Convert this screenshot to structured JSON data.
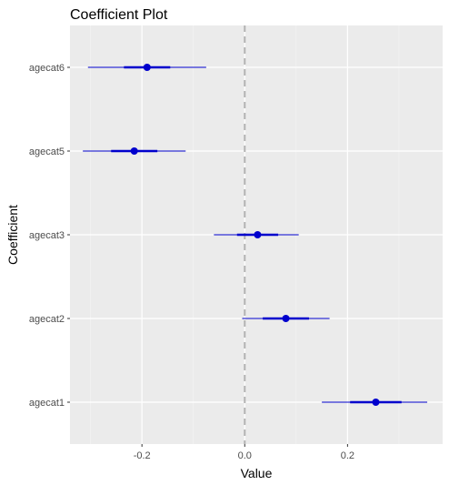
{
  "chart_data": {
    "type": "coefficient-plot",
    "title": "Coefficient Plot",
    "xlabel": "Value",
    "ylabel": "Coefficient",
    "xlim": [
      -0.34,
      0.385
    ],
    "x_ticks": [
      -0.2,
      0.0,
      0.2
    ],
    "x_tick_labels": [
      "-0.2",
      "0.0",
      "0.2"
    ],
    "categories": [
      "agecat6",
      "agecat5",
      "agecat3",
      "agecat2",
      "agecat1"
    ],
    "estimates": [
      -0.19,
      -0.215,
      0.025,
      0.08,
      0.255
    ],
    "inner_interval": [
      [
        -0.235,
        -0.145
      ],
      [
        -0.26,
        -0.17
      ],
      [
        -0.015,
        0.065
      ],
      [
        0.035,
        0.125
      ],
      [
        0.205,
        0.305
      ]
    ],
    "outer_interval": [
      [
        -0.305,
        -0.075
      ],
      [
        -0.315,
        -0.115
      ],
      [
        -0.06,
        0.105
      ],
      [
        -0.005,
        0.165
      ],
      [
        0.15,
        0.355
      ]
    ],
    "reference_line": 0,
    "grid": true,
    "panel_color": "#ebebeb",
    "point_color": "#0000cd",
    "line_color": "#0000cd",
    "reference_line_color": "#b3b3b3"
  }
}
